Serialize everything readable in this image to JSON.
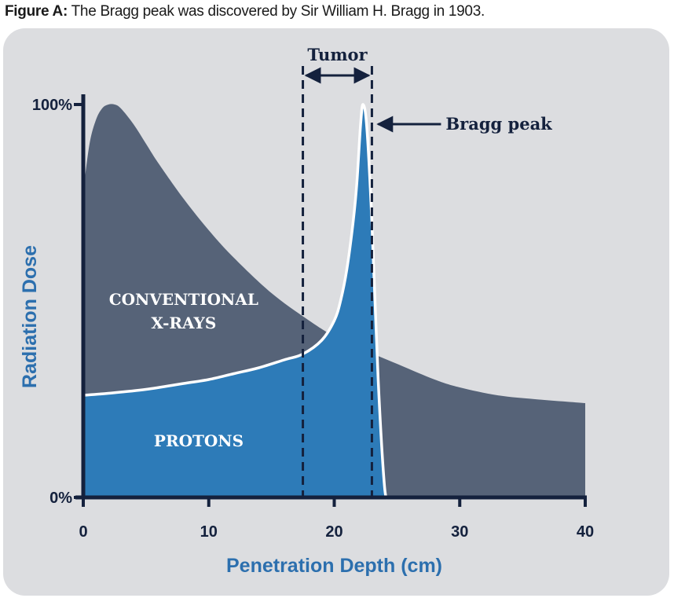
{
  "caption": {
    "prefix": "Figure A:",
    "text": " The Bragg peak was discovered by Sir William H. Bragg in 1903."
  },
  "chart_data": {
    "type": "area",
    "title": "",
    "xlabel": "Penetration Depth (cm)",
    "ylabel": "Radiation Dose",
    "xlim": [
      0,
      40
    ],
    "ylim": [
      0,
      100
    ],
    "x_ticks": [
      "0",
      "10",
      "20",
      "30",
      "40"
    ],
    "y_ticks": [
      "0%",
      "100%"
    ],
    "grid": false,
    "series": [
      {
        "name": "CONVENTIONAL X-RAYS",
        "color": "#566378",
        "x": [
          0,
          0.5,
          1,
          1.5,
          2,
          2.5,
          3,
          4,
          5,
          6,
          8,
          10,
          12,
          15,
          18,
          20,
          22,
          25,
          28,
          30,
          33,
          36,
          40
        ],
        "y": [
          78,
          90,
          96,
          99,
          100,
          100,
          99,
          95,
          90,
          85,
          76,
          68,
          61,
          52,
          45,
          41,
          38,
          34,
          30,
          28,
          26,
          25,
          24
        ]
      },
      {
        "name": "PROTONS",
        "color": "#2d7bb8",
        "x": [
          0,
          2,
          5,
          8,
          10,
          12,
          14,
          16,
          17.5,
          19,
          20,
          20.5,
          21,
          21.5,
          21.8,
          22.1,
          22.3,
          22.6,
          23,
          23.5,
          24,
          24.3,
          40
        ],
        "y": [
          26,
          26.5,
          27.5,
          29,
          30,
          31.5,
          33,
          35,
          36.5,
          40,
          45,
          50,
          58,
          70,
          80,
          95,
          100,
          94,
          70,
          30,
          3,
          0,
          0
        ]
      }
    ],
    "annotations": [
      {
        "text": "Tumor",
        "x_range": [
          17.5,
          23
        ]
      },
      {
        "text": "Bragg peak",
        "x": 23,
        "y": 95
      }
    ]
  }
}
